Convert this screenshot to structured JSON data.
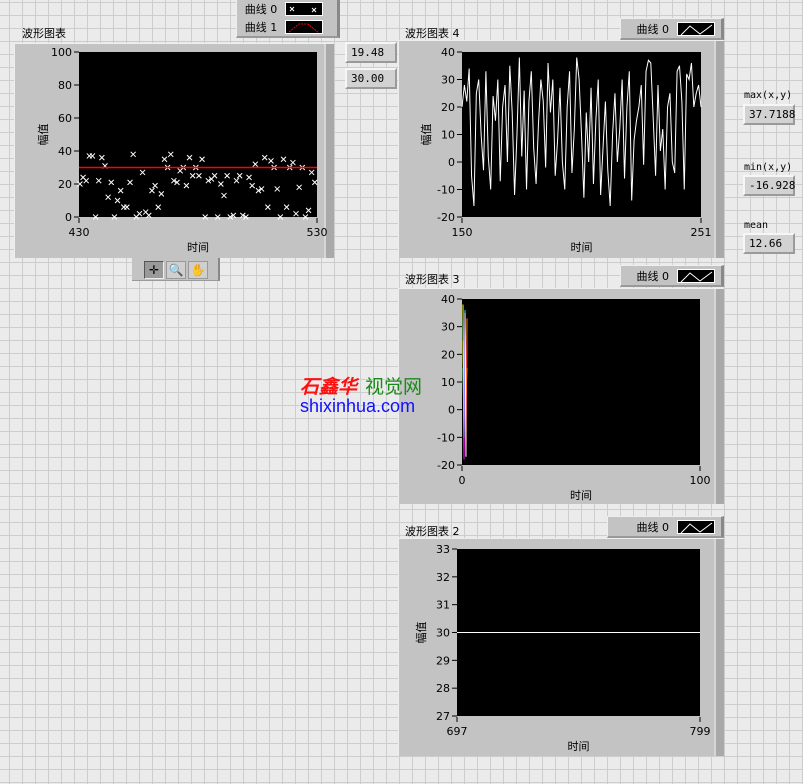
{
  "colors": {
    "plot_bg": "#000000",
    "trace_white": "#ffffff",
    "trace_red": "#ff0000",
    "watermark_blue": "#1010ff",
    "watermark_red": "#ff1010",
    "watermark_green": "#1a8a1a"
  },
  "chart1": {
    "title": "波形图表",
    "legend": [
      {
        "label": "曲线 0",
        "style": "x-markers"
      },
      {
        "label": "曲线 1",
        "style": "red-line"
      }
    ],
    "indicators": [
      "19.48",
      "30.00"
    ],
    "palette": [
      {
        "icon": "cursor-crosshair-icon"
      },
      {
        "icon": "zoom-icon"
      },
      {
        "icon": "pan-hand-icon"
      }
    ]
  },
  "chart4": {
    "title": "波形图表 4",
    "legend": [
      {
        "label": "曲线 0",
        "style": "line"
      }
    ]
  },
  "chart3": {
    "title": "波形图表 3",
    "legend": [
      {
        "label": "曲线 0",
        "style": "line"
      }
    ]
  },
  "chart2": {
    "title": "波形图表 2",
    "legend": [
      {
        "label": "曲线 0",
        "style": "line"
      }
    ]
  },
  "stats": {
    "max_label": "max(x,y)",
    "max_value": "37.7188",
    "min_label": "min(x,y)",
    "min_value": "-16.928",
    "mean_label": "mean",
    "mean_value": "12.66"
  },
  "watermark": {
    "chinese": "石鑫华视觉网",
    "url": "shixinhua.com"
  },
  "chart_data": [
    {
      "type": "scatter",
      "title": "波形图表",
      "xlabel": "时间",
      "ylabel": "幅值",
      "xlim": [
        430,
        530
      ],
      "ylim": [
        0,
        100
      ],
      "y_ticks": [
        0,
        20,
        40,
        60,
        80,
        100
      ],
      "x_ticks": [
        430,
        530
      ],
      "series": [
        {
          "name": "曲线 0",
          "marker": "x",
          "color": "#ffffff",
          "values": [
            20,
            24,
            22,
            37,
            37,
            0,
            22,
            36,
            31,
            12,
            21,
            0,
            10,
            16,
            6,
            6,
            21,
            38,
            0,
            2,
            27,
            3,
            1,
            16,
            19,
            6,
            14,
            35,
            30,
            38,
            22,
            21,
            28,
            30,
            19,
            36,
            25,
            30,
            25,
            35,
            0,
            22,
            23,
            25,
            0,
            20,
            13,
            25,
            0,
            1,
            22,
            25,
            1,
            0,
            24,
            19,
            32,
            16,
            17,
            36,
            6,
            34,
            30,
            17,
            0,
            35,
            6,
            30,
            33,
            2,
            18,
            30,
            0,
            4,
            27,
            21
          ]
        },
        {
          "name": "曲线 1",
          "marker": "line",
          "color": "#ff0000",
          "values": [
            30,
            30
          ]
        }
      ]
    },
    {
      "type": "line",
      "title": "波形图表 4",
      "xlabel": "时间",
      "ylabel": "幅值",
      "xlim": [
        150,
        251
      ],
      "ylim": [
        -20,
        40
      ],
      "y_ticks": [
        -20,
        -10,
        0,
        10,
        20,
        30,
        40
      ],
      "x_ticks": [
        150,
        251
      ],
      "series": [
        {
          "name": "曲线 0",
          "color": "#ffffff",
          "values": [
            20,
            28,
            22,
            34,
            -5,
            -16,
            25,
            30,
            10,
            -3,
            33,
            2,
            -10,
            24,
            15,
            30,
            -7,
            20,
            28,
            0,
            35,
            18,
            -12,
            10,
            38,
            2,
            26,
            -10,
            22,
            33,
            5,
            -8,
            14,
            30,
            22,
            -2,
            36,
            18,
            30,
            -5,
            8,
            27,
            0,
            -10,
            20,
            33,
            -4,
            12,
            38,
            30,
            10,
            -13,
            18,
            0,
            27,
            -8,
            15,
            30,
            -12,
            5,
            22,
            -3,
            -16,
            10,
            25,
            0,
            12,
            30,
            -6,
            20,
            33,
            -14,
            8,
            15,
            20,
            28,
            -1,
            33,
            37,
            36,
            16,
            -5,
            28,
            4,
            12,
            -10,
            20,
            25,
            0,
            -4,
            33,
            35,
            22,
            -10,
            32,
            30,
            36,
            20,
            25,
            28,
            20
          ]
        }
      ]
    },
    {
      "type": "line",
      "title": "波形图表 3",
      "xlabel": "时间",
      "ylabel": "",
      "xlim": [
        0,
        100
      ],
      "ylim": [
        -20,
        40
      ],
      "y_ticks": [
        -20,
        -10,
        0,
        10,
        20,
        30,
        40
      ],
      "x_ticks": [
        0,
        100
      ],
      "series": [
        {
          "name": "曲线 0",
          "color": "multicolor",
          "values": [
            38,
            -18,
            36,
            -15,
            33,
            -10,
            30,
            -5,
            25,
            0,
            20,
            5,
            15,
            -8,
            35,
            -17
          ]
        }
      ]
    },
    {
      "type": "line",
      "title": "波形图表 2",
      "xlabel": "时间",
      "ylabel": "幅值",
      "xlim": [
        697,
        799
      ],
      "ylim": [
        27,
        33
      ],
      "y_ticks": [
        27,
        28,
        29,
        30,
        31,
        32,
        33
      ],
      "x_ticks": [
        697,
        799
      ],
      "series": [
        {
          "name": "曲线 0",
          "color": "#ffffff",
          "values": [
            30,
            30
          ]
        }
      ]
    }
  ]
}
